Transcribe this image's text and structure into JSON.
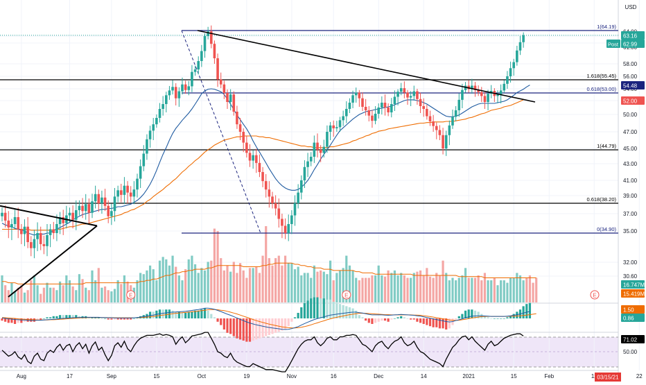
{
  "price_axis": {
    "currency": "USD",
    "ticks": [
      "64.00",
      "61.00",
      "58.00",
      "56.00",
      "54.00",
      "52.00",
      "50.00",
      "47.00",
      "45.00",
      "43.00",
      "41.00",
      "39.00",
      "37.00",
      "35.00",
      "32.00"
    ],
    "ticks_low": [
      "30.60"
    ],
    "badges": [
      {
        "text": "63.16",
        "value": 63.16,
        "color": "#26a69a"
      },
      {
        "text": "62.99",
        "value": 62.99,
        "color": "#26a69a",
        "prefix": "Post"
      },
      {
        "text": "54.48",
        "value": 54.48,
        "color": "#1a237e"
      },
      {
        "text": "52.00",
        "value": 52.0,
        "color": "#ef5350"
      },
      {
        "text": "16.747M",
        "value": 16.747,
        "color": "#26a69a",
        "panel": "volume"
      },
      {
        "text": "15.419M",
        "value": 15.419,
        "color": "#ef6c00",
        "panel": "volume"
      }
    ]
  },
  "macd_axis": {
    "badges": [
      {
        "text": "1.50",
        "value": 1.5,
        "color": "#ef6c00"
      },
      {
        "text": "0.86",
        "value": 0.86,
        "color": "#26a69a"
      }
    ]
  },
  "rsi_axis": {
    "ticks": [
      "50.00"
    ],
    "badges": [
      {
        "text": "71.02",
        "value": 71.02,
        "color": "#000000"
      }
    ]
  },
  "date_badge": {
    "text": "03/15/21",
    "color": "#e53935"
  },
  "x_axis": {
    "labels": [
      "Aug",
      "17",
      "Sep",
      "15",
      "Oct",
      "19",
      "Nov",
      "16",
      "Dec",
      "14",
      "2021",
      "15",
      "Feb",
      "12",
      "22"
    ],
    "positions_idx": [
      6,
      21,
      34,
      48,
      62,
      76,
      90,
      103,
      117,
      131,
      145,
      159,
      170,
      184,
      198
    ]
  },
  "fib_labels": [
    {
      "text": "1(64.19)",
      "value": 64.19,
      "color": "#1a237e"
    },
    {
      "text": "1.618(55.45)",
      "value": 55.45,
      "color": "#000000"
    },
    {
      "text": "0.618(53.00)",
      "value": 53.0,
      "color": "#1a237e"
    },
    {
      "text": "1(44.79)",
      "value": 44.79,
      "color": "#000000"
    },
    {
      "text": "0.618(38.20)",
      "value": 38.2,
      "color": "#000000"
    },
    {
      "text": "0(34.90)",
      "value": 34.9,
      "color": "#1a237e"
    }
  ],
  "earnings_markers": [
    "E",
    "E",
    "E"
  ],
  "colors": {
    "up": "#26a69a",
    "down": "#ef5350",
    "vol_up": "#80cbc4",
    "vol_down": "#f4a6a4",
    "ma_short": "#1e5aa0",
    "ma_long": "#ef6c00",
    "fib_blue": "#1a237e",
    "fib_black": "#000000",
    "rsi_band": "#efe6f8",
    "rsi_line": "#000000"
  },
  "chart_data": {
    "type": "candlestick",
    "x_start": "Aug",
    "x_end": "22 (Feb)",
    "ylim": [
      30.6,
      66.5
    ],
    "closes": [
      37.1,
      36.2,
      35.4,
      35.8,
      36.6,
      35.2,
      34.8,
      35.5,
      34.0,
      33.4,
      34.3,
      34.9,
      33.8,
      33.6,
      34.7,
      35.2,
      34.9,
      35.8,
      36.6,
      35.9,
      36.8,
      37.1,
      36.3,
      37.4,
      37.9,
      37.3,
      38.1,
      37.1,
      38.4,
      39.2,
      38.2,
      38.8,
      37.9,
      36.7,
      37.3,
      38.9,
      39.7,
      39.1,
      40.3,
      39.4,
      38.9,
      39.8,
      41.2,
      42.7,
      44.3,
      46.1,
      47.2,
      48.3,
      49.4,
      50.8,
      51.5,
      52.7,
      53.6,
      54.3,
      52.3,
      53.4,
      54.7,
      53.7,
      54.4,
      56.7,
      57.1,
      58.5,
      60.3,
      63.0,
      64.0,
      61.6,
      59.0,
      55.5,
      54.7,
      53.0,
      51.8,
      52.8,
      50.4,
      48.3,
      47.0,
      45.7,
      44.4,
      43.4,
      44.1,
      43.1,
      42.0,
      40.9,
      39.8,
      38.9,
      38.2,
      37.6,
      36.4,
      35.6,
      34.9,
      35.8,
      36.8,
      38.2,
      39.4,
      41.0,
      42.6,
      43.3,
      43.9,
      45.7,
      44.8,
      44.4,
      45.2,
      47.0,
      48.1,
      47.6,
      47.8,
      49.0,
      49.7,
      50.8,
      51.7,
      52.7,
      53.1,
      52.3,
      51.1,
      50.6,
      49.8,
      48.9,
      50.1,
      51.0,
      51.7,
      51.0,
      50.3,
      51.5,
      52.5,
      53.3,
      54.1,
      53.1,
      52.4,
      52.6,
      53.4,
      52.2,
      51.2,
      50.8,
      49.7,
      48.8,
      48.0,
      47.3,
      46.6,
      45.0,
      46.6,
      48.1,
      49.6,
      50.6,
      52.1,
      53.7,
      54.5,
      53.9,
      54.5,
      53.7,
      53.2,
      52.6,
      51.8,
      52.9,
      53.5,
      52.6,
      52.8,
      53.6,
      54.8,
      56.0,
      57.3,
      58.3,
      60.4,
      61.9,
      63.2
    ],
    "ma_short": [
      35.9,
      35.7,
      35.6,
      35.5,
      35.3,
      35.2,
      35.1,
      35.0,
      34.9,
      34.8,
      34.7,
      34.8,
      34.8,
      34.8,
      34.9,
      34.9,
      35.1,
      35.2,
      35.4,
      35.6,
      35.8,
      36.0,
      36.3,
      36.5,
      36.7,
      36.9,
      37.0,
      37.1,
      37.2,
      37.3,
      37.4,
      37.5,
      37.5,
      37.6,
      37.6,
      37.7,
      37.8,
      37.8,
      37.9,
      38.0,
      38.1,
      38.3,
      38.5,
      38.8,
      39.2,
      39.8,
      40.5,
      41.3,
      42.2,
      43.2,
      44.2,
      45.1,
      46.0,
      46.8,
      47.6,
      48.3,
      49.0,
      49.6,
      50.2,
      50.8,
      51.5,
      52.2,
      52.9,
      53.5,
      53.9,
      54.0,
      53.9,
      53.6,
      53.3,
      52.8,
      52.2,
      51.5,
      50.7,
      49.9,
      49.1,
      48.3,
      47.5,
      46.7,
      45.9,
      45.2,
      44.5,
      43.8,
      43.1,
      42.4,
      41.8,
      41.2,
      40.7,
      40.3,
      40.0,
      39.8,
      39.7,
      39.7,
      39.8,
      40.1,
      40.5,
      41.0,
      41.6,
      42.3,
      42.9,
      43.6,
      44.2,
      44.8,
      45.4,
      46.0,
      46.6,
      47.2,
      47.7,
      48.2,
      48.7,
      49.2,
      49.6,
      50.0,
      50.2,
      50.4,
      50.5,
      50.6,
      50.7,
      50.8,
      50.9,
      51.0,
      51.1,
      51.2,
      51.4,
      51.6,
      51.8,
      52.0,
      52.1,
      52.1,
      52.1,
      52.0,
      51.9,
      51.7,
      51.5,
      51.2,
      50.9,
      50.6,
      50.3,
      50.0,
      49.7,
      49.6,
      49.6,
      49.7,
      49.9,
      50.2,
      50.5,
      50.8,
      51.1,
      51.3,
      51.5,
      51.6,
      51.6,
      51.6,
      51.6,
      51.6,
      51.7,
      51.8,
      51.9,
      52.1,
      52.4,
      52.7,
      53.1,
      53.5,
      53.9,
      54.3,
      54.6
    ],
    "ma_long": [
      35.2,
      35.2,
      35.2,
      35.2,
      35.2,
      35.2,
      35.2,
      35.2,
      35.2,
      35.1,
      35.1,
      35.1,
      35.1,
      35.1,
      35.1,
      35.1,
      35.1,
      35.2,
      35.2,
      35.3,
      35.4,
      35.5,
      35.5,
      35.6,
      35.7,
      35.8,
      35.8,
      35.9,
      36.0,
      36.1,
      36.2,
      36.3,
      36.4,
      36.5,
      36.6,
      36.7,
      36.8,
      36.9,
      37.1,
      37.2,
      37.4,
      37.5,
      37.7,
      37.9,
      38.1,
      38.4,
      38.6,
      38.9,
      39.2,
      39.5,
      39.8,
      40.2,
      40.5,
      40.9,
      41.2,
      41.6,
      42.0,
      42.3,
      42.7,
      43.0,
      43.4,
      43.7,
      44.1,
      44.5,
      44.8,
      45.1,
      45.4,
      45.6,
      45.8,
      46.0,
      46.1,
      46.2,
      46.3,
      46.4,
      46.4,
      46.5,
      46.5,
      46.5,
      46.5,
      46.5,
      46.4,
      46.4,
      46.3,
      46.3,
      46.2,
      46.1,
      46.0,
      45.9,
      45.8,
      45.7,
      45.6,
      45.5,
      45.4,
      45.3,
      45.3,
      45.2,
      45.2,
      45.1,
      45.1,
      45.1,
      45.1,
      45.1,
      45.2,
      45.2,
      45.3,
      45.4,
      45.5,
      45.6,
      45.7,
      45.9,
      46.0,
      46.2,
      46.3,
      46.5,
      46.6,
      46.8,
      46.9,
      47.1,
      47.2,
      47.3,
      47.5,
      47.6,
      47.7,
      47.8,
      47.9,
      48.0,
      48.1,
      48.2,
      48.3,
      48.4,
      48.5,
      48.5,
      48.6,
      48.6,
      48.7,
      48.7,
      48.7,
      48.7,
      48.8,
      48.8,
      48.8,
      48.9,
      49.0,
      49.1,
      49.2,
      49.4,
      49.5,
      49.7,
      49.9,
      50.1,
      50.2,
      50.4,
      50.6,
      50.7,
      50.8,
      50.9,
      51.1,
      51.2,
      51.3,
      51.5,
      51.7,
      51.9,
      52.1
    ],
    "volume": [
      22,
      14,
      10,
      16,
      9,
      12,
      14,
      8,
      10,
      18,
      22,
      14,
      7,
      12,
      16,
      12,
      12,
      10,
      17,
      14,
      22,
      18,
      13,
      10,
      23,
      19,
      12,
      10,
      26,
      18,
      28,
      12,
      13,
      10,
      9,
      11,
      18,
      15,
      22,
      17,
      14,
      12,
      18,
      24,
      23,
      26,
      30,
      27,
      18,
      34,
      37,
      35,
      30,
      38,
      29,
      22,
      18,
      27,
      35,
      38,
      31,
      24,
      28,
      26,
      33,
      34,
      60,
      58,
      36,
      26,
      30,
      25,
      33,
      24,
      32,
      26,
      20,
      28,
      28,
      29,
      24,
      38,
      62,
      36,
      30,
      36,
      38,
      30,
      38,
      32,
      32,
      27,
      29,
      22,
      24,
      24,
      20,
      30,
      25,
      26,
      25,
      23,
      34,
      18,
      24,
      26,
      28,
      38,
      30,
      26,
      20,
      18,
      20,
      20,
      20,
      22,
      22,
      30,
      22,
      21,
      26,
      24,
      26,
      22,
      24,
      22,
      20,
      20,
      24,
      25,
      26,
      22,
      28,
      21,
      20,
      24,
      22,
      34,
      24,
      18,
      20,
      18,
      20,
      22,
      28,
      20,
      20,
      20,
      22,
      18,
      24,
      18,
      18,
      20,
      14,
      18,
      18,
      16,
      20,
      20,
      24,
      22,
      18,
      20,
      22,
      16,
      20
    ],
    "volume_ma": [
      17,
      17,
      16,
      16,
      16,
      15,
      15,
      15,
      15,
      15,
      15,
      15,
      15,
      15,
      15,
      15,
      15,
      15,
      15,
      15,
      15,
      15,
      15,
      15,
      15,
      15,
      16,
      16,
      16,
      16,
      16,
      16,
      16,
      16,
      16,
      16,
      16,
      16,
      16,
      16,
      16,
      16,
      16,
      17,
      17,
      18,
      18,
      19,
      19,
      20,
      21,
      22,
      22,
      23,
      24,
      24,
      25,
      25,
      26,
      26,
      27,
      27,
      27,
      27,
      28,
      28,
      29,
      30,
      30,
      30,
      30,
      30,
      30,
      30,
      30,
      29,
      29,
      29,
      29,
      29,
      29,
      30,
      30,
      31,
      31,
      32,
      32,
      32,
      32,
      32,
      32,
      31,
      31,
      30,
      30,
      29,
      29,
      28,
      28,
      28,
      27,
      27,
      27,
      26,
      26,
      26,
      26,
      26,
      26,
      26,
      25,
      25,
      24,
      24,
      24,
      24,
      23,
      23,
      23,
      23,
      23,
      23,
      23,
      23,
      23,
      23,
      23,
      23,
      22,
      22,
      22,
      22,
      22,
      22,
      22,
      22,
      22,
      22,
      22,
      22,
      22,
      22,
      21,
      21,
      21,
      21,
      21,
      21,
      21,
      21,
      20,
      20,
      20,
      20,
      20,
      20,
      20,
      20,
      20,
      20,
      20,
      20,
      20,
      20,
      20,
      20,
      20
    ],
    "macd_line": [
      0.2,
      0.0,
      -0.2,
      -0.3,
      -0.5,
      -0.6,
      -0.7,
      -0.7,
      -0.8,
      -0.9,
      -0.9,
      -0.8,
      -0.8,
      -0.7,
      -0.6,
      -0.5,
      -0.4,
      -0.3,
      -0.1,
      0.0,
      0.1,
      0.2,
      0.3,
      0.4,
      0.4,
      0.5,
      0.5,
      0.5,
      0.5,
      0.5,
      0.5,
      0.4,
      0.4,
      0.3,
      0.3,
      0.2,
      0.2,
      0.2,
      0.2,
      0.2,
      0.2,
      0.3,
      0.4,
      0.6,
      0.8,
      1.0,
      1.3,
      1.5,
      1.8,
      2.1,
      2.3,
      2.5,
      2.7,
      2.8,
      2.9,
      3.0,
      3.1,
      3.2,
      3.4,
      3.6,
      3.8,
      4.0,
      4.3,
      4.6,
      4.6,
      4.4,
      4.1,
      3.6,
      3.1,
      2.5,
      1.9,
      1.4,
      0.8,
      0.2,
      -0.4,
      -1.0,
      -1.6,
      -2.1,
      -2.5,
      -2.9,
      -3.2,
      -3.5,
      -3.8,
      -4.1,
      -4.3,
      -4.5,
      -4.7,
      -4.9,
      -5.0,
      -4.9,
      -4.6,
      -4.2,
      -3.7,
      -3.0,
      -2.3,
      -1.7,
      -1.1,
      -0.5,
      -0.1,
      0.3,
      0.7,
      1.1,
      1.5,
      1.7,
      1.9,
      2.1,
      2.3,
      2.5,
      2.7,
      2.8,
      2.8,
      2.6,
      2.4,
      2.1,
      1.8,
      1.6,
      1.6,
      1.6,
      1.6,
      1.5,
      1.4,
      1.5,
      1.6,
      1.7,
      1.8,
      1.7,
      1.6,
      1.5,
      1.4,
      1.2,
      1.0,
      0.7,
      0.4,
      0.1,
      -0.2,
      -0.5,
      -0.8,
      -1.1,
      -1.4,
      -1.6,
      -1.4,
      -1.0,
      -0.6,
      -0.2,
      0.3,
      0.7,
      1.0,
      1.1,
      1.2,
      1.2,
      1.1,
      1.0,
      0.9,
      0.9,
      0.9,
      0.9,
      0.9,
      1.0,
      1.2,
      1.4,
      1.7,
      2.0,
      2.4,
      2.8,
      3.1
    ],
    "macd_signal": [
      0.4,
      0.3,
      0.2,
      0.1,
      0.0,
      -0.2,
      -0.3,
      -0.4,
      -0.5,
      -0.6,
      -0.6,
      -0.7,
      -0.7,
      -0.7,
      -0.7,
      -0.6,
      -0.6,
      -0.5,
      -0.4,
      -0.3,
      -0.2,
      -0.1,
      0.0,
      0.1,
      0.2,
      0.3,
      0.3,
      0.4,
      0.4,
      0.4,
      0.4,
      0.4,
      0.4,
      0.4,
      0.4,
      0.3,
      0.3,
      0.3,
      0.3,
      0.3,
      0.3,
      0.3,
      0.3,
      0.4,
      0.5,
      0.6,
      0.7,
      0.9,
      1.1,
      1.3,
      1.5,
      1.7,
      1.9,
      2.1,
      2.3,
      2.4,
      2.6,
      2.7,
      2.8,
      3.0,
      3.1,
      3.3,
      3.5,
      3.7,
      3.9,
      4.0,
      4.0,
      3.9,
      3.7,
      3.5,
      3.2,
      2.8,
      2.4,
      2.0,
      1.5,
      1.0,
      0.5,
      0.0,
      -0.5,
      -1.0,
      -1.4,
      -1.8,
      -2.2,
      -2.6,
      -2.9,
      -3.2,
      -3.5,
      -3.8,
      -4.0,
      -4.2,
      -4.3,
      -4.3,
      -4.2,
      -4.0,
      -3.7,
      -3.3,
      -2.9,
      -2.4,
      -2.0,
      -1.5,
      -1.1,
      -0.6,
      -0.2,
      0.2,
      0.5,
      0.8,
      1.1,
      1.4,
      1.7,
      1.9,
      2.1,
      2.3,
      2.3,
      2.3,
      2.2,
      2.1,
      2.0,
      1.9,
      1.8,
      1.7,
      1.7,
      1.6,
      1.6,
      1.6,
      1.6,
      1.6,
      1.6,
      1.6,
      1.5,
      1.5,
      1.4,
      1.2,
      1.0,
      0.8,
      0.6,
      0.3,
      0.1,
      -0.2,
      -0.4,
      -0.7,
      -0.8,
      -0.9,
      -0.8,
      -0.6,
      -0.4,
      -0.1,
      0.2,
      0.4,
      0.6,
      0.8,
      0.9,
      0.9,
      0.9,
      0.9,
      0.9,
      0.9,
      0.9,
      0.9,
      1.0,
      1.0,
      1.1,
      1.2,
      1.3,
      1.5,
      1.7,
      1.9,
      2.1
    ],
    "rsi": [
      52,
      48,
      44,
      46,
      50,
      43,
      40,
      46,
      37,
      34,
      44,
      48,
      40,
      38,
      48,
      52,
      49,
      56,
      60,
      52,
      58,
      60,
      50,
      58,
      62,
      54,
      60,
      48,
      58,
      63,
      52,
      56,
      46,
      38,
      45,
      58,
      62,
      56,
      64,
      54,
      50,
      58,
      64,
      68,
      70,
      72,
      72,
      72,
      73,
      74,
      72,
      73,
      72,
      70,
      60,
      66,
      70,
      62,
      66,
      71,
      72,
      73,
      74,
      76,
      76,
      68,
      60,
      50,
      48,
      44,
      42,
      48,
      40,
      36,
      34,
      32,
      30,
      30,
      34,
      32,
      30,
      28,
      26,
      26,
      26,
      25,
      24,
      23,
      23,
      30,
      38,
      46,
      54,
      60,
      64,
      66,
      66,
      70,
      62,
      58,
      62,
      68,
      70,
      66,
      66,
      70,
      70,
      72,
      72,
      73,
      72,
      66,
      60,
      58,
      54,
      50,
      58,
      62,
      64,
      58,
      54,
      60,
      64,
      66,
      70,
      62,
      58,
      60,
      64,
      56,
      50,
      48,
      44,
      40,
      38,
      36,
      34,
      30,
      40,
      48,
      56,
      60,
      66,
      70,
      71,
      66,
      70,
      64,
      60,
      56,
      52,
      60,
      64,
      58,
      60,
      64,
      68,
      70,
      72,
      73,
      74,
      74,
      71
    ]
  },
  "_note": "n/a"
}
